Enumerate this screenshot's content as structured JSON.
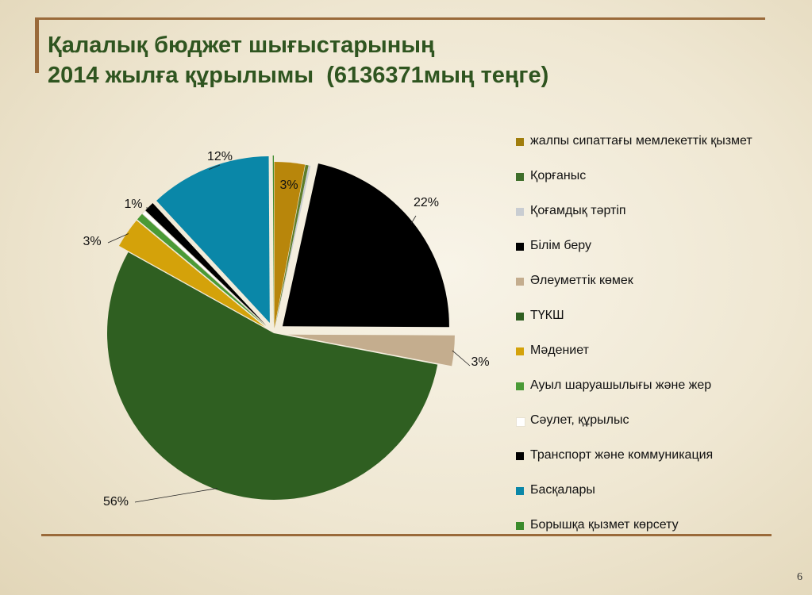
{
  "slide": {
    "title_line1": "Қалалық бюджет шығыстарының",
    "title_line2": "2014 жылға құрылымы  (6136371мың теңге)",
    "page_number": "6"
  },
  "chart_data": {
    "type": "pie",
    "title": "Қалалық бюджет шығыстарының 2014 жылға құрылымы (6136371мың теңге)",
    "start_angle_deg": 0,
    "direction": "clockwise",
    "series": [
      {
        "name": "жалпы сипаттағы мемлекеттік қызмет",
        "value": 3,
        "label": "3%",
        "color": "#b8860b",
        "legend_swatch": "#a07d0c"
      },
      {
        "name": "Қорғаныс",
        "value": 0.3,
        "label": "",
        "color": "#5e7d2a",
        "legend_swatch": "#3e6e2a"
      },
      {
        "name": "Қоғамдық тәртіп",
        "value": 0.2,
        "label": "",
        "color": "#c9cdd2",
        "legend_swatch": "#c9cdd2"
      },
      {
        "name": "Білім беру",
        "value": 22,
        "label": "22%",
        "color": "#000000",
        "legend_swatch": "#000000"
      },
      {
        "name": "Әлеуметтік көмек",
        "value": 3,
        "label": "3%",
        "color": "#c4ad8e",
        "legend_swatch": "#c4ad8e"
      },
      {
        "name": "ТҮКШ",
        "value": 56,
        "label": "56%",
        "color": "#2f5f21",
        "legend_swatch": "#2f5f21"
      },
      {
        "name": "Мәдениет",
        "value": 3,
        "label": "3%",
        "color": "#d4a20a",
        "legend_swatch": "#d4a20a"
      },
      {
        "name": "Ауыл шаруашылығы және жер",
        "value": 0.7,
        "label": "",
        "color": "#4a9a36",
        "legend_swatch": "#4a9a36"
      },
      {
        "name": "Сәулет, құрылыс",
        "value": 0.4,
        "label": "",
        "color": "#ffffff",
        "legend_swatch": "#ffffff"
      },
      {
        "name": "Транспорт және коммуникация",
        "value": 1,
        "label": "1%",
        "color": "#000000",
        "legend_swatch": "#000000"
      },
      {
        "name": "Басқалары",
        "value": 12,
        "label": "12%",
        "color": "#0a87a8",
        "legend_swatch": "#0a87a8"
      },
      {
        "name": "Борышқа қызмет көрсету",
        "value": 0.1,
        "label": "",
        "color": "#3a8a2a",
        "legend_swatch": "#3a8a2a"
      }
    ],
    "legend_position": "right"
  }
}
